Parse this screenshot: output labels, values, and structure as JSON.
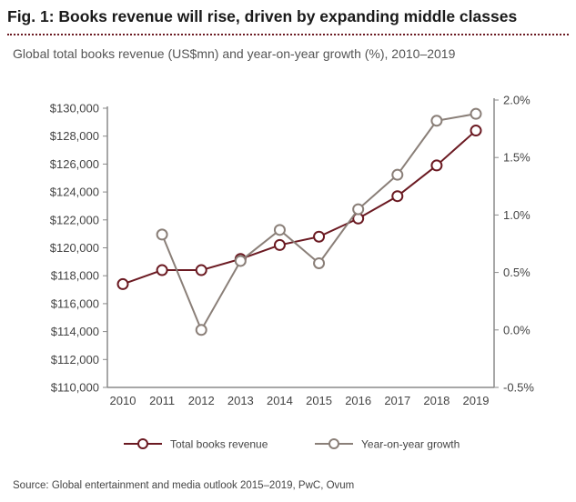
{
  "header": {
    "title": "Fig. 1: Books revenue will rise, driven by expanding middle classes",
    "subtitle": "Global total books revenue (US$mn) and year-on-year growth (%), 2010–2019"
  },
  "footer": {
    "source": "Source: Global entertainment and media outlook 2015–2019, PwC, Ovum"
  },
  "chart_data": {
    "type": "line",
    "categories": [
      "2010",
      "2011",
      "2012",
      "2013",
      "2014",
      "2015",
      "2016",
      "2017",
      "2018",
      "2019"
    ],
    "left_axis": {
      "ylim": [
        110000,
        130000
      ],
      "ticks": [
        110000,
        112000,
        114000,
        116000,
        118000,
        120000,
        122000,
        124000,
        126000,
        128000,
        130000
      ],
      "tick_labels": [
        "$110,000",
        "$112,000",
        "$114,000",
        "$116,000",
        "$118,000",
        "$120,000",
        "$122,000",
        "$124,000",
        "$126,000",
        "$128,000",
        "$130,000"
      ]
    },
    "right_axis": {
      "ylim": [
        -0.5,
        2.0
      ],
      "ticks": [
        -0.5,
        0.0,
        0.5,
        1.0,
        1.5,
        2.0
      ],
      "tick_labels": [
        "-0.5%",
        "0.0%",
        "0.5%",
        "1.0%",
        "1.5%",
        "2.0%"
      ]
    },
    "series": [
      {
        "name": "Total books revenue",
        "axis": "left",
        "color": "#6b1a22",
        "x": [
          "2010",
          "2011",
          "2012",
          "2013",
          "2014",
          "2015",
          "2016",
          "2017",
          "2018",
          "2019"
        ],
        "values": [
          117400,
          118400,
          118400,
          119200,
          120200,
          120800,
          122100,
          123700,
          125900,
          128400
        ]
      },
      {
        "name": "Year-on-year growth",
        "axis": "right",
        "color": "#8a7f78",
        "x": [
          "2011",
          "2012",
          "2013",
          "2014",
          "2015",
          "2016",
          "2017",
          "2018",
          "2019"
        ],
        "values": [
          0.83,
          0.0,
          0.6,
          0.87,
          0.58,
          1.05,
          1.35,
          1.82,
          1.88
        ]
      }
    ],
    "legend_position": "bottom",
    "grid": false
  }
}
